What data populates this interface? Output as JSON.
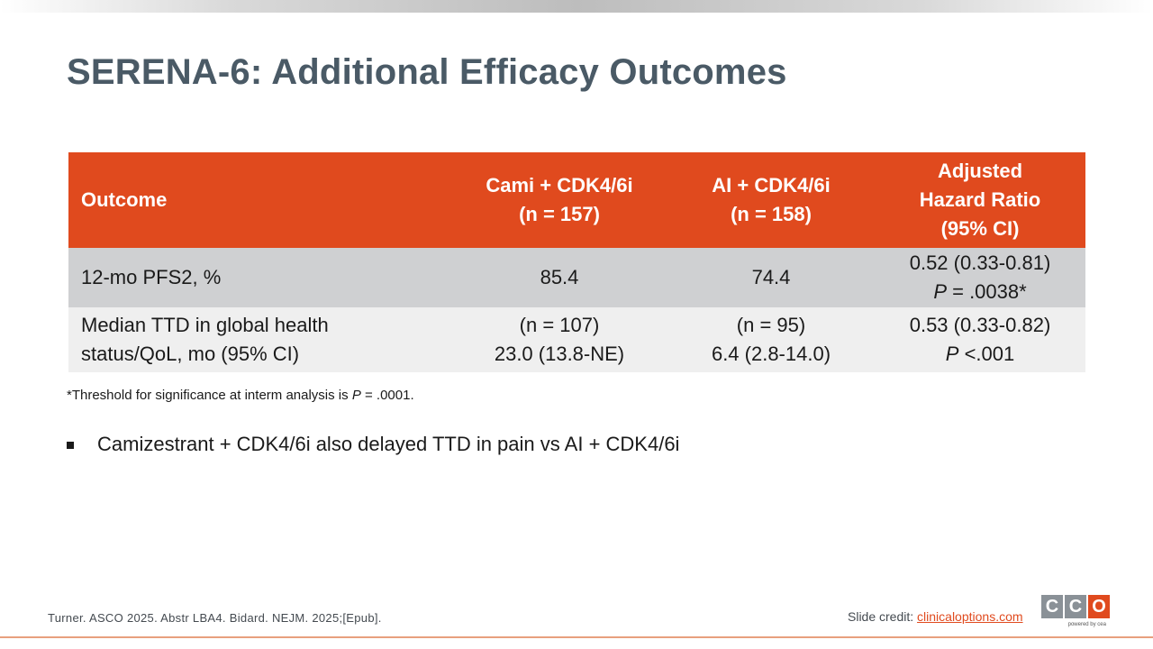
{
  "slide": {
    "title": "SERENA-6: Additional Efficacy Outcomes"
  },
  "table": {
    "headers": {
      "outcome": "Outcome",
      "cami": [
        "Cami + CDK4/6i",
        "(n = 157)"
      ],
      "ai": [
        "AI + CDK4/6i",
        "(n = 158)"
      ],
      "hr": [
        "Adjusted",
        "Hazard Ratio",
        "(95% CI)"
      ]
    },
    "rows": [
      {
        "outcome": "12-mo PFS2, %",
        "cami": "85.4",
        "ai": "74.4",
        "hr": "0.52 (0.33-0.81)",
        "p_label": "P",
        "p_value": " = .0038*"
      },
      {
        "outcome": [
          "Median TTD in global health",
          "status/QoL, mo (95% CI)"
        ],
        "cami": [
          "(n = 107)",
          "23.0 (13.8-NE)"
        ],
        "ai": [
          "(n = 95)",
          "6.4 (2.8-14.0)"
        ],
        "hr": "0.53 (0.33-0.82)",
        "p_label": "P",
        "p_value": " <.001"
      }
    ]
  },
  "footnote": {
    "before": "*Threshold for significance at interm analysis is ",
    "p": "P",
    "after": " = .0001."
  },
  "bullets": [
    "Camizestrant + CDK4/6i also delayed TTD in pain vs AI + CDK4/6i"
  ],
  "footer": {
    "citation": "Turner. ASCO 2025. Abstr LBA4. Bidard. NEJM. 2025;[Epub].",
    "credit_label": "Slide credit: ",
    "credit_link": "clinicaloptions.com",
    "logo_letters": [
      "C",
      "C",
      "O"
    ],
    "logo_tagline": "powered by cea"
  },
  "colors": {
    "accent": "#e04a1e",
    "title": "#4a5a66",
    "row_shaded": "#cfd0d2",
    "row_light": "#efefef"
  }
}
